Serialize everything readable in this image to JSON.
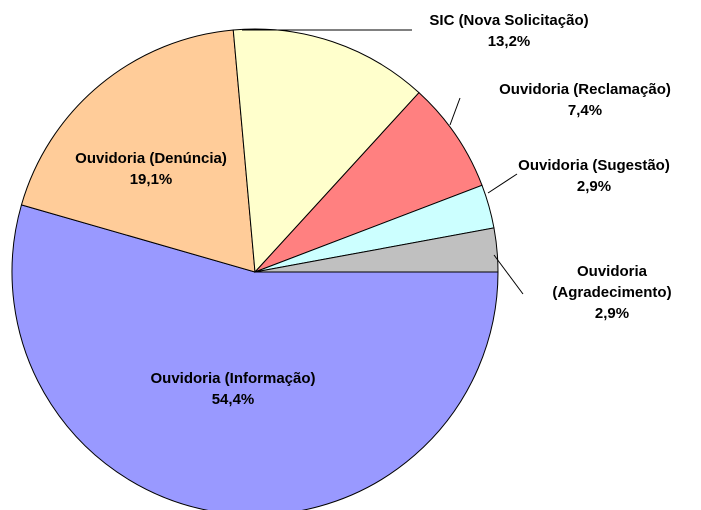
{
  "chart_data": {
    "type": "pie",
    "start_angle_deg": 0,
    "direction": "clockwise",
    "slices": [
      {
        "label": "Ouvidoria (Informação)",
        "value": 54.4,
        "display": "54,4%",
        "color": "#9999ff",
        "label_mode": "inside"
      },
      {
        "label": "Ouvidoria (Denúncia)",
        "value": 19.1,
        "display": "19,1%",
        "color": "#ffcc99",
        "label_mode": "inside"
      },
      {
        "label": "SIC (Nova Solicitação)",
        "value": 13.2,
        "display": "13,2%",
        "color": "#ffffcc",
        "label_mode": "outside"
      },
      {
        "label": "Ouvidoria (Reclamação)",
        "value": 7.4,
        "display": "7,4%",
        "color": "#ff8080",
        "label_mode": "outside"
      },
      {
        "label": "Ouvidoria (Sugestão)",
        "value": 2.9,
        "display": "2,9%",
        "color": "#ccffff",
        "label_mode": "outside"
      },
      {
        "label": "Ouvidoria (Agradecimento)",
        "value": 2.9,
        "display": "2,9%",
        "color": "#c0c0c0",
        "label_mode": "outside",
        "label_lines": [
          "Ouvidoria",
          "(Agradecimento)"
        ]
      }
    ],
    "legend": "none"
  }
}
